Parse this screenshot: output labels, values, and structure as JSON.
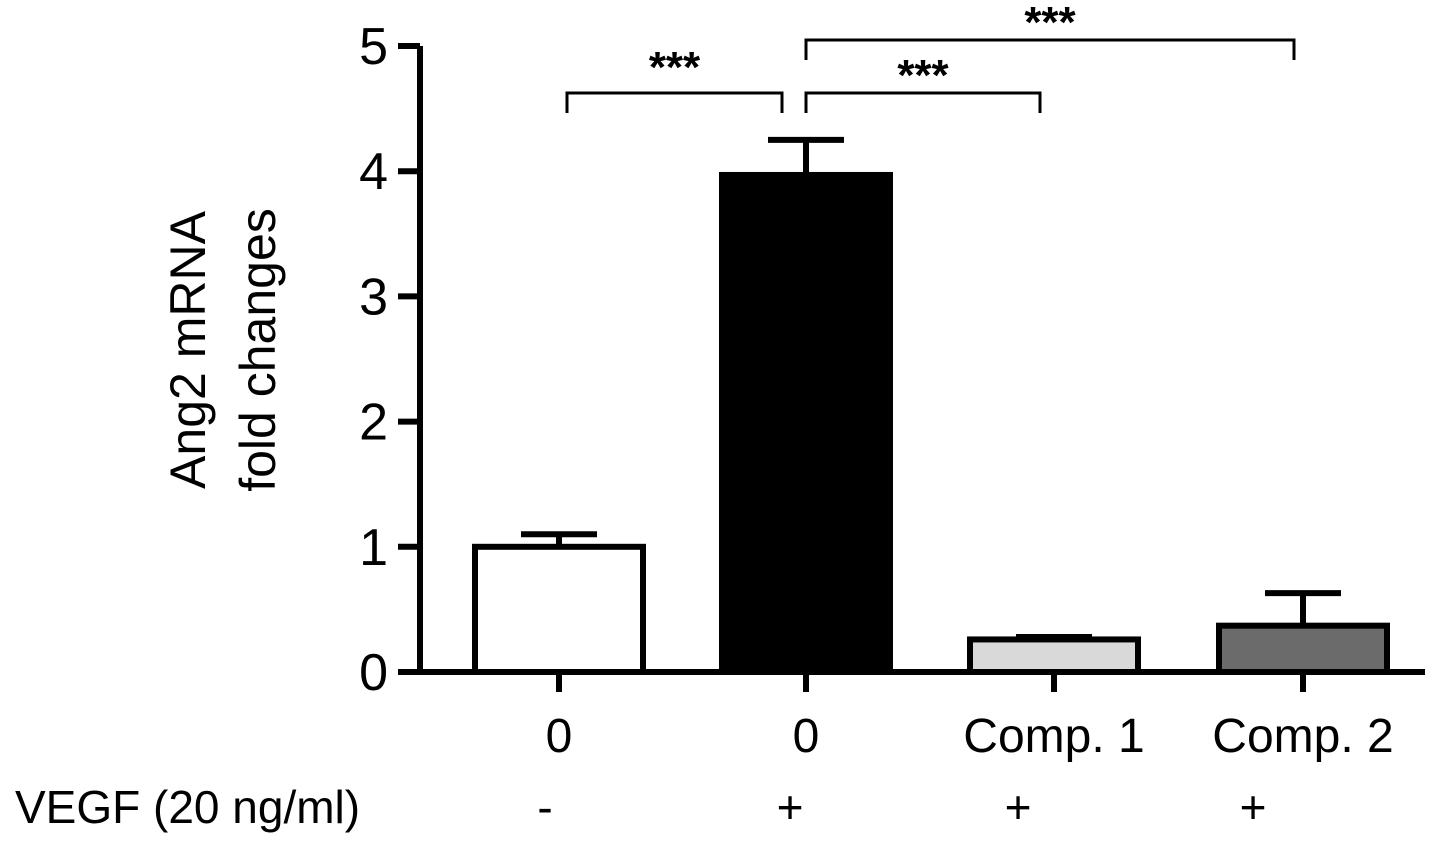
{
  "chart_data": {
    "type": "bar",
    "categories": [
      "0",
      "0",
      "Comp. 1",
      "Comp. 2"
    ],
    "values": [
      1.0,
      3.97,
      0.26,
      0.37
    ],
    "errors": [
      0.1,
      0.28,
      0.02,
      0.26
    ],
    "bar_colors": [
      "#ffffff",
      "#000000",
      "#d9d9d9",
      "#6b6b6b"
    ],
    "ylabel_lines": [
      "Ang2 mRNA",
      "fold changes"
    ],
    "xlabel": "",
    "title": "",
    "ylim": [
      0,
      5
    ],
    "yticks": [
      0,
      1,
      2,
      3,
      4,
      5
    ],
    "grid": false,
    "treatment_row": {
      "label": "VEGF (20 ng/ml)",
      "values": [
        "-",
        "+",
        "+",
        "+"
      ]
    },
    "significance": [
      {
        "from": 0,
        "to": 1,
        "label": "***"
      },
      {
        "from": 1,
        "to": 2,
        "label": "***"
      },
      {
        "from": 1,
        "to": 3,
        "label": "***"
      }
    ]
  }
}
